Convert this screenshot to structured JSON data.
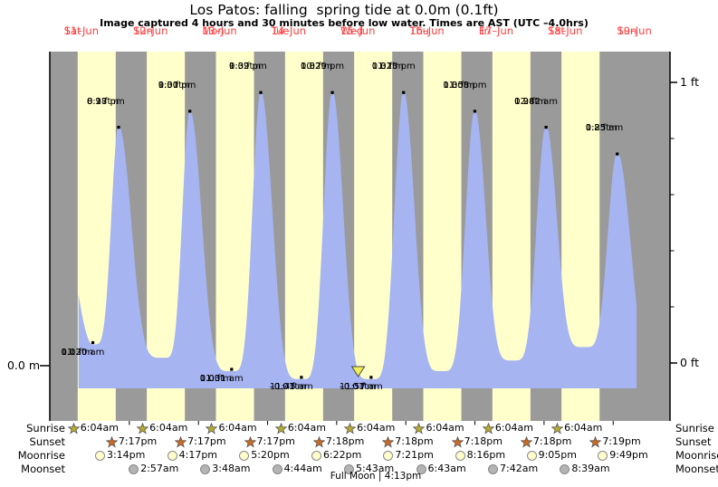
{
  "page": {
    "title": "Los Patos: falling  spring tide at 0.0m (0.1ft)",
    "subtitle": "Image captured 4 hours and 30 minutes before low water. Times are AST (UTC –4.0hrs)"
  },
  "colors": {
    "day_band": "#ffffcc",
    "night_band": "#9a9a9a",
    "water": "#a6b4f2",
    "date_text": "#ff4040",
    "axis": "#000000",
    "dot": "#000000",
    "sunrise_icon": "#b8ad2d",
    "sunset_icon": "#d2691e",
    "moonrise_icon": "#ffffcc",
    "moonset_icon": "#b4b4b4",
    "marker_fill": "#f0ef59",
    "marker_stroke": "#444444"
  },
  "days": [
    {
      "name": "Sat",
      "date": "11–Jun"
    },
    {
      "name": "Sun",
      "date": "12–Jun"
    },
    {
      "name": "Mon",
      "date": "13–Jun"
    },
    {
      "name": "Tue",
      "date": "14–Jun"
    },
    {
      "name": "Wed",
      "date": "15–Jun"
    },
    {
      "name": "Thu",
      "date": "16–Jun"
    },
    {
      "name": "Fri",
      "date": "17–Jun"
    },
    {
      "name": "Sat",
      "date": "18–Jun"
    },
    {
      "name": "Sun",
      "date": "19–Jun"
    }
  ],
  "chart_data": {
    "type": "area",
    "title": "Los Patos: falling  spring tide at 0.0m (0.1ft)",
    "x_axis": {
      "start": "Fri 10-Jun ~19:45",
      "end": "Sun 19-Jun ~19:30",
      "unit": "hours from Sat 11-Jun 00:00",
      "day_labels_at": "noon"
    },
    "y_axis": {
      "left_ticks": [
        {
          "ft": 0,
          "label": "0.0 m"
        }
      ],
      "right_ticks": [
        {
          "ft": 0,
          "label": "0 ft"
        },
        {
          "ft": 1,
          "label": "1 ft"
        }
      ],
      "minor_tick_step_ft": 0.2,
      "range_ft": [
        -0.1,
        1.3
      ]
    },
    "highs": [
      {
        "day": "Sat 11-Jun",
        "t": 20.283,
        "h": 0.92,
        "lines": [
          "8:17 pm",
          "0.9 ft",
          "0.28 m"
        ]
      },
      {
        "day": "Sun 12-Jun",
        "t": 45.017,
        "h": 0.98,
        "lines": [
          "9:01 pm",
          "1.0 ft",
          "0.30 m"
        ]
      },
      {
        "day": "Mon 13-Jun",
        "t": 69.65,
        "h": 1.05,
        "lines": [
          "9:39 pm",
          "1.0 ft",
          "0.32 m"
        ]
      },
      {
        "day": "Tue 14-Jun",
        "t": 94.483,
        "h": 1.05,
        "lines": [
          "10:29 pm",
          "1.0 ft",
          "0.32 m"
        ]
      },
      {
        "day": "Wed 15-Jun",
        "t": 119.217,
        "h": 1.05,
        "lines": [
          "11:13 pm",
          "1.0 ft",
          "0.32 m"
        ]
      },
      {
        "day": "Thu 16-Jun",
        "t": 143.967,
        "h": 0.98,
        "lines": [
          "11:58 pm",
          "1.0 ft",
          "0.30 m"
        ]
      },
      {
        "day": "Sat 18-Jun",
        "t": 168.7,
        "h": 0.92,
        "lines": [
          "12:42 am",
          "0.9 ft",
          "0.28 m"
        ]
      },
      {
        "day": "Sun 19-Jun",
        "t": 193.417,
        "h": 0.82,
        "lines": [
          "1:25 am",
          "0.8 ft",
          "0.25 m"
        ]
      }
    ],
    "lows": [
      {
        "day": "Sat 11-Jun",
        "t": 11.333,
        "h": 0.1,
        "lines": [
          "0.03 m",
          "0.1 ft",
          "11:20 am"
        ]
      },
      {
        "day": "Mon 13-Jun",
        "t": 59.517,
        "h": 0.0,
        "lines": [
          "0.00 m",
          "0.0 ft",
          "11:31 am"
        ]
      },
      {
        "day": "Tue 14-Jun",
        "t": 83.75,
        "h": -0.03,
        "lines": [
          "–0.01 m",
          "–0.0 ft",
          "11:45 am"
        ]
      },
      {
        "day": "Wed 15-Jun",
        "t": 107.95,
        "h": -0.03,
        "lines": [
          "–0.01 m",
          "–0.0 ft",
          "11:57 am"
        ]
      }
    ],
    "curve_checkpoints": [
      {
        "t": -4.6,
        "h": 0.95,
        "kind": "high",
        "kr": 1.0
      },
      {
        "t": 11.333,
        "h": 0.1,
        "kind": "low"
      },
      {
        "t": 20.283,
        "h": 0.92,
        "kind": "high"
      },
      {
        "t": 35.8,
        "h": 0.05,
        "kind": "low"
      },
      {
        "t": 45.017,
        "h": 0.98,
        "kind": "high"
      },
      {
        "t": 59.517,
        "h": 0.0,
        "kind": "low"
      },
      {
        "t": 69.65,
        "h": 1.05,
        "kind": "high"
      },
      {
        "t": 83.75,
        "h": -0.03,
        "kind": "low"
      },
      {
        "t": 94.483,
        "h": 1.05,
        "kind": "high"
      },
      {
        "t": 107.95,
        "h": -0.03,
        "kind": "low"
      },
      {
        "t": 119.217,
        "h": 1.05,
        "kind": "high"
      },
      {
        "t": 132.5,
        "h": 0.0,
        "kind": "low"
      },
      {
        "t": 143.967,
        "h": 0.98,
        "kind": "high"
      },
      {
        "t": 157.2,
        "h": 0.04,
        "kind": "low"
      },
      {
        "t": 168.7,
        "h": 0.92,
        "kind": "high"
      },
      {
        "t": 181.9,
        "h": 0.09,
        "kind": "low"
      },
      {
        "t": 193.417,
        "h": 0.82,
        "kind": "high",
        "kr": 1.2
      },
      {
        "t": 204.3,
        "h": 0.05,
        "kind": "low"
      }
    ],
    "capture_marker_t": 103.45,
    "draw_range_t": [
      6.35,
      200.1
    ],
    "sunrise_hour": 6.067,
    "sunset_hour": 19.283
  },
  "astro": {
    "rows": [
      {
        "label": "Sunrise",
        "icon": "sunrise-star",
        "entries": [
          {
            "day": 0,
            "time": "6:04am"
          },
          {
            "day": 1,
            "time": "6:04am"
          },
          {
            "day": 2,
            "time": "6:04am"
          },
          {
            "day": 3,
            "time": "6:04am"
          },
          {
            "day": 4,
            "time": "6:04am"
          },
          {
            "day": 5,
            "time": "6:04am"
          },
          {
            "day": 6,
            "time": "6:04am"
          },
          {
            "day": 7,
            "time": "6:04am"
          }
        ]
      },
      {
        "label": "Sunset",
        "icon": "sunset-star",
        "entries": [
          {
            "day": 0,
            "time": "7:17pm"
          },
          {
            "day": 1,
            "time": "7:17pm"
          },
          {
            "day": 2,
            "time": "7:17pm"
          },
          {
            "day": 3,
            "time": "7:18pm"
          },
          {
            "day": 4,
            "time": "7:18pm"
          },
          {
            "day": 5,
            "time": "7:18pm"
          },
          {
            "day": 6,
            "time": "7:18pm"
          },
          {
            "day": 7,
            "time": "7:19pm"
          }
        ]
      },
      {
        "label": "Moonrise",
        "icon": "moonrise-circle",
        "entries": [
          {
            "day": 0,
            "time": "3:14pm"
          },
          {
            "day": 1,
            "time": "4:17pm"
          },
          {
            "day": 2,
            "time": "5:20pm"
          },
          {
            "day": 3,
            "time": "6:22pm"
          },
          {
            "day": 4,
            "time": "7:21pm"
          },
          {
            "day": 5,
            "time": "8:16pm"
          },
          {
            "day": 6,
            "time": "9:05pm"
          },
          {
            "day": 7,
            "time": "9:49pm"
          }
        ]
      },
      {
        "label": "Moonset",
        "icon": "moonset-circle",
        "entries": [
          {
            "day": 1,
            "time": "2:57am"
          },
          {
            "day": 2,
            "time": "3:48am"
          },
          {
            "day": 3,
            "time": "4:44am"
          },
          {
            "day": 4,
            "time": "5:43am"
          },
          {
            "day": 5,
            "time": "6:43am"
          },
          {
            "day": 6,
            "time": "7:42am"
          },
          {
            "day": 7,
            "time": "8:39am"
          }
        ]
      }
    ],
    "footnote": "Full Moon | 4:13pm"
  }
}
